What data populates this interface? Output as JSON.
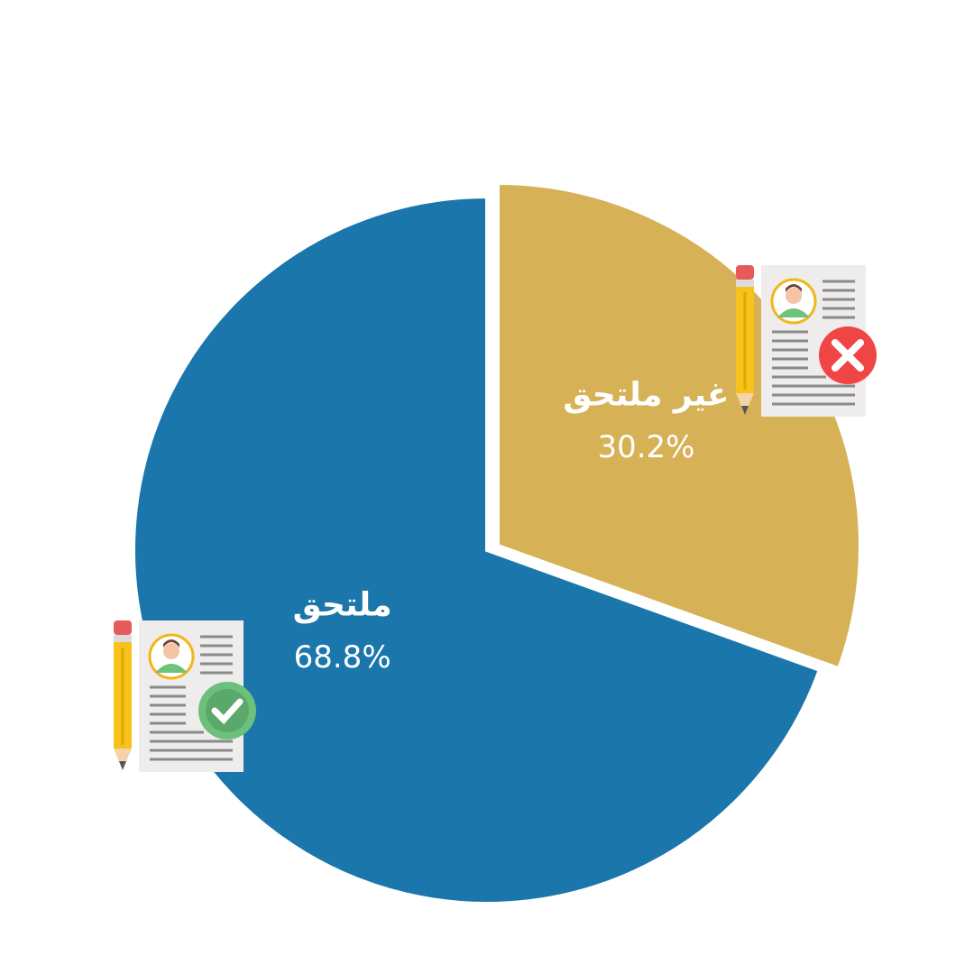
{
  "chart_data": {
    "type": "pie",
    "categories": [
      "غير ملتحق",
      "ملتحق"
    ],
    "values": [
      30.2,
      68.8
    ],
    "value_labels": [
      "30.2%",
      "68.8%"
    ],
    "colors": [
      "#d6b156",
      "#1a76ab"
    ]
  }
}
